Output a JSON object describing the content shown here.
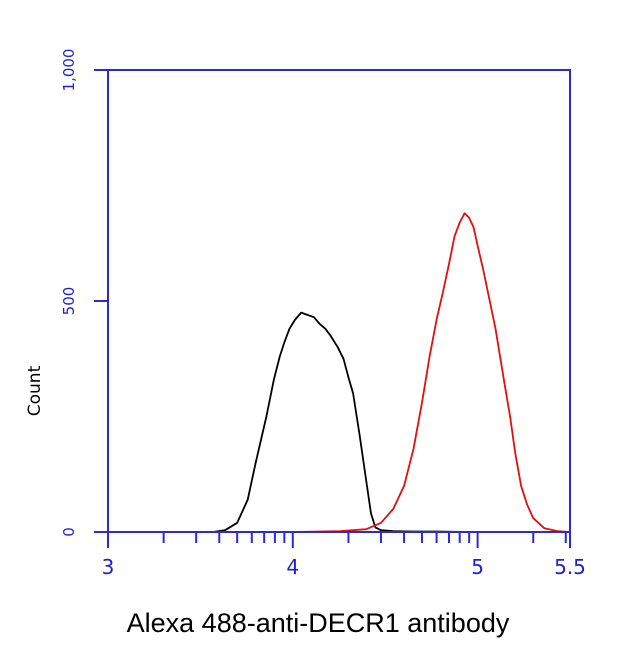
{
  "chart_data": {
    "type": "line",
    "title": "",
    "xlabel": "Alexa 488-anti-DECR1 antibody",
    "ylabel": "Count",
    "xscale": "log",
    "xlim": [
      1000,
      316228
    ],
    "ylim": [
      0,
      1000
    ],
    "x_tick_labels": [
      "3",
      "4",
      "5",
      "5.5"
    ],
    "y_tick_labels": [
      "0",
      "500",
      "1,000"
    ],
    "grid": false,
    "legend": "none",
    "colors": {
      "axis": "#2a2ad6",
      "series_1": "#000000",
      "series_2": "#e01010"
    },
    "series": [
      {
        "color": "#000000",
        "x": [
          2500,
          3162,
          3700,
          4300,
          5000,
          5700,
          6300,
          7200,
          7900,
          8500,
          9000,
          9600,
          10300,
          11100,
          12000,
          13000,
          14000,
          15000,
          16000,
          17500,
          18800,
          20000,
          21200,
          23000,
          25000,
          26500,
          28000,
          30000,
          35000,
          45000,
          60000,
          90000,
          140000,
          200000
        ],
        "y": [
          0,
          0,
          0,
          4,
          20,
          70,
          150,
          250,
          330,
          380,
          410,
          440,
          460,
          475,
          470,
          465,
          450,
          440,
          425,
          400,
          375,
          335,
          300,
          210,
          110,
          40,
          10,
          4,
          2,
          1,
          1,
          0,
          0,
          0
        ]
      },
      {
        "color": "#e01010",
        "x": [
          10000,
          18000,
          25000,
          30000,
          35000,
          40000,
          45000,
          50000,
          55000,
          60000,
          65000,
          70000,
          75000,
          80000,
          85000,
          90000,
          95000,
          100000,
          107000,
          115000,
          125000,
          140000,
          150000,
          160000,
          172000,
          185000,
          200000,
          230000,
          270000,
          316228
        ],
        "y": [
          0,
          2,
          6,
          20,
          50,
          100,
          180,
          280,
          380,
          460,
          520,
          580,
          640,
          670,
          690,
          680,
          660,
          620,
          570,
          510,
          440,
          320,
          250,
          170,
          100,
          60,
          30,
          8,
          2,
          0
        ]
      }
    ]
  }
}
